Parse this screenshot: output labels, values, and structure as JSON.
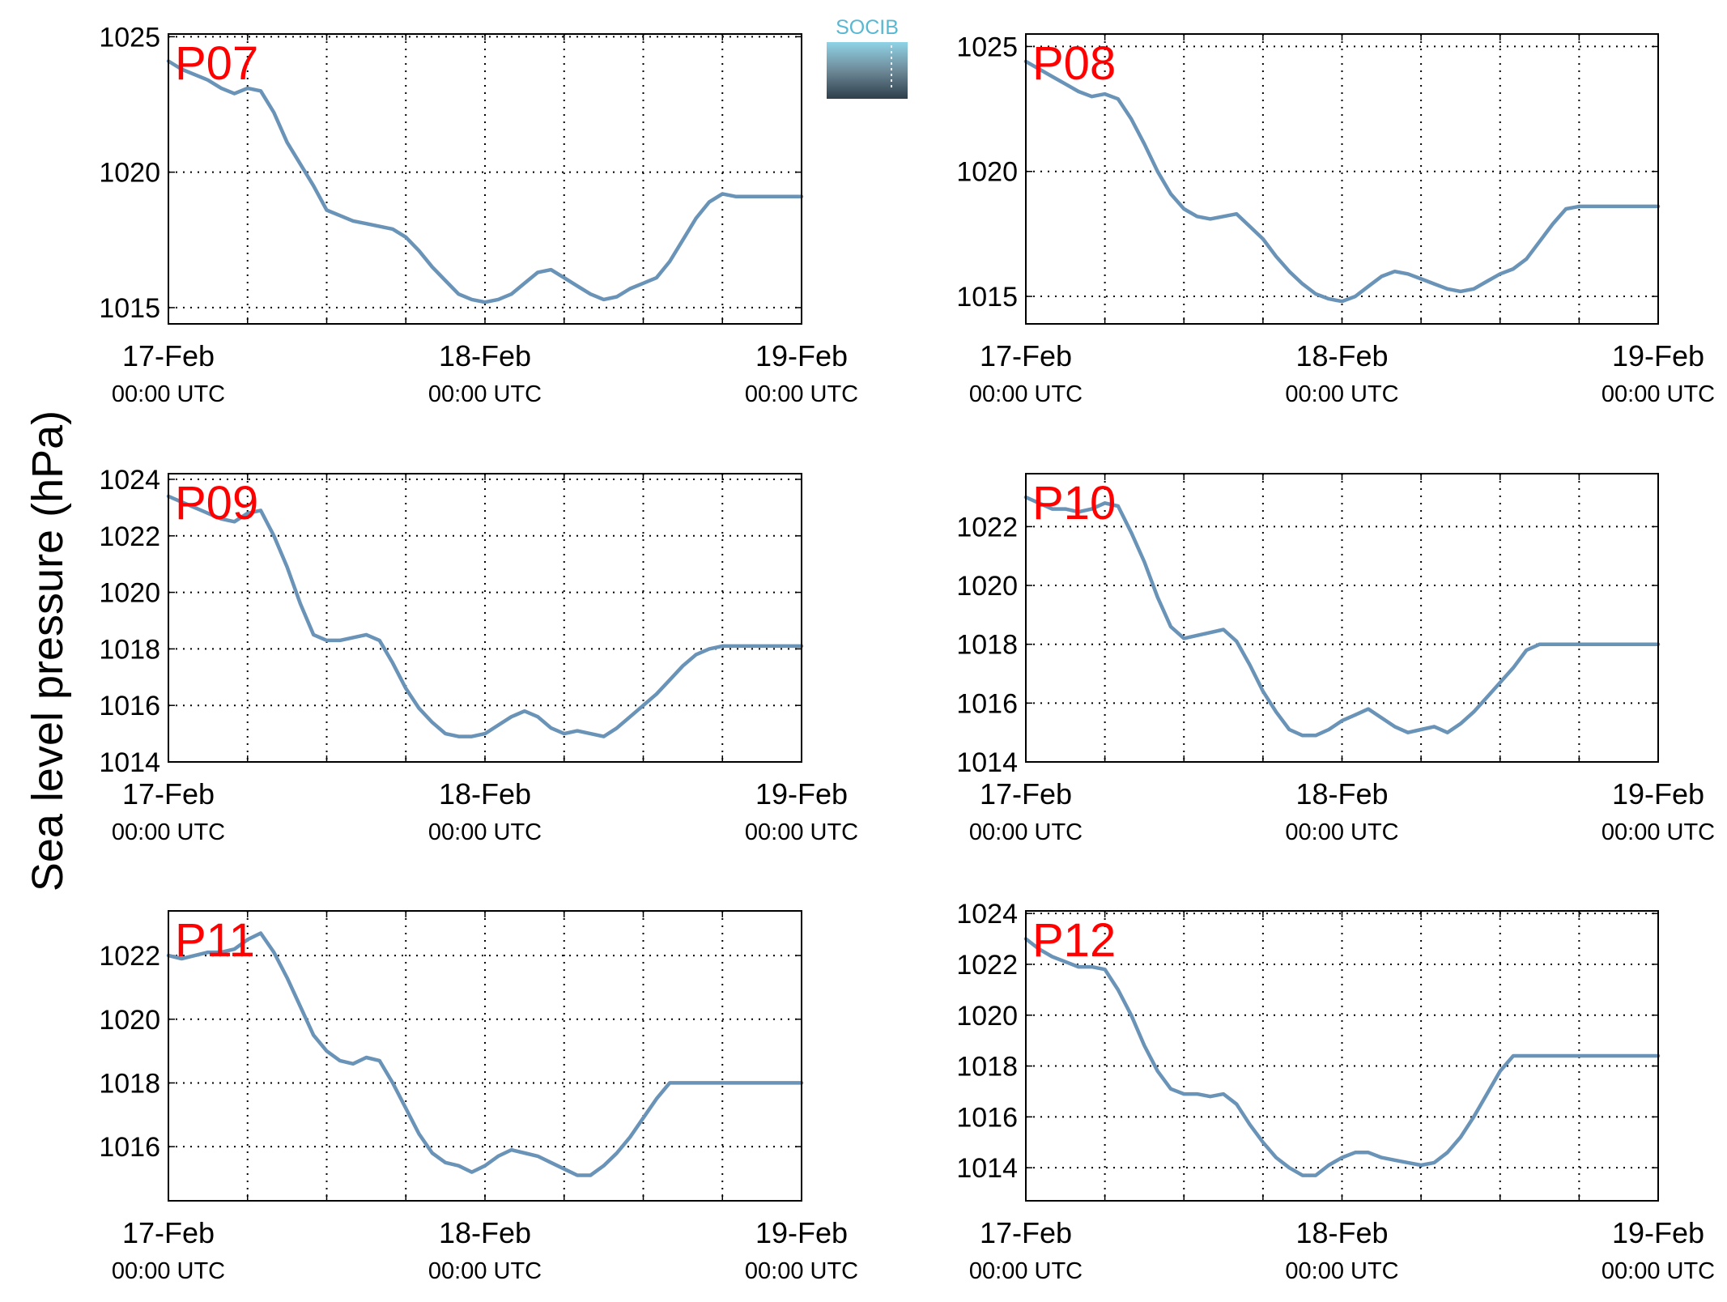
{
  "figure": {
    "ylabel": "Sea level pressure (hPa)",
    "logo_text": "SOCIB",
    "x_tick_labels": [
      {
        "date": "17-Feb",
        "time": "00:00 UTC"
      },
      {
        "date": "18-Feb",
        "time": "00:00 UTC"
      },
      {
        "date": "19-Feb",
        "time": "00:00 UTC"
      }
    ],
    "line_color": "#6a93b8",
    "station_label_color": "#ff0000"
  },
  "chart_data": [
    {
      "type": "line",
      "station": "P07",
      "grid": true,
      "xlabel": "",
      "ylabel": "Sea level pressure (hPa)",
      "xlim_hours": [
        0,
        48
      ],
      "ylim": [
        1014.4,
        1025.1
      ],
      "yticks": [
        1015,
        1020,
        1025
      ],
      "x_hours": [
        0,
        1,
        2,
        3,
        4,
        5,
        6,
        7,
        8,
        9,
        10,
        11,
        12,
        13,
        14,
        15,
        16,
        17,
        18,
        19,
        20,
        21,
        22,
        23,
        24,
        25,
        26,
        27,
        28,
        29,
        30,
        31,
        32,
        33,
        34,
        35,
        36,
        37,
        38,
        39,
        40,
        41,
        42,
        43,
        44,
        45,
        46,
        47,
        48
      ],
      "y": [
        1024.1,
        1023.8,
        1023.6,
        1023.4,
        1023.1,
        1022.9,
        1023.1,
        1023.0,
        1022.2,
        1021.1,
        1020.3,
        1019.5,
        1018.6,
        1018.4,
        1018.2,
        1018.1,
        1018.0,
        1017.9,
        1017.6,
        1017.1,
        1016.5,
        1016.0,
        1015.5,
        1015.3,
        1015.2,
        1015.3,
        1015.5,
        1015.9,
        1016.3,
        1016.4,
        1016.1,
        1015.8,
        1015.5,
        1015.3,
        1015.4,
        1015.7,
        1015.9,
        1016.1,
        1016.7,
        1017.5,
        1018.3,
        1018.9,
        1019.2,
        1019.1,
        1019.1,
        1019.1,
        1019.1,
        1019.1,
        1019.1
      ],
      "series": [
        {
          "name": "",
          "values": []
        }
      ]
    },
    {
      "type": "line",
      "station": "P08",
      "grid": true,
      "xlabel": "",
      "ylabel": "Sea level pressure (hPa)",
      "xlim_hours": [
        0,
        48
      ],
      "ylim": [
        1013.9,
        1025.5
      ],
      "yticks": [
        1015,
        1020,
        1025
      ],
      "x_hours": [
        0,
        1,
        2,
        3,
        4,
        5,
        6,
        7,
        8,
        9,
        10,
        11,
        12,
        13,
        14,
        15,
        16,
        17,
        18,
        19,
        20,
        21,
        22,
        23,
        24,
        25,
        26,
        27,
        28,
        29,
        30,
        31,
        32,
        33,
        34,
        35,
        36,
        37,
        38,
        39,
        40,
        41,
        42,
        43,
        44,
        45,
        46,
        47,
        48
      ],
      "y": [
        1024.4,
        1024.1,
        1023.8,
        1023.5,
        1023.2,
        1023.0,
        1023.1,
        1022.9,
        1022.1,
        1021.1,
        1020.0,
        1019.1,
        1018.5,
        1018.2,
        1018.1,
        1018.2,
        1018.3,
        1017.8,
        1017.3,
        1016.6,
        1016.0,
        1015.5,
        1015.1,
        1014.9,
        1014.8,
        1015.0,
        1015.4,
        1015.8,
        1016.0,
        1015.9,
        1015.7,
        1015.5,
        1015.3,
        1015.2,
        1015.3,
        1015.6,
        1015.9,
        1016.1,
        1016.5,
        1017.2,
        1017.9,
        1018.5,
        1018.6,
        1018.6,
        1018.6,
        1018.6,
        1018.6,
        1018.6,
        1018.6
      ],
      "series": [
        {
          "name": "",
          "values": []
        }
      ]
    },
    {
      "type": "line",
      "station": "P09",
      "grid": true,
      "xlabel": "",
      "ylabel": "Sea level pressure (hPa)",
      "xlim_hours": [
        0,
        48
      ],
      "ylim": [
        1014,
        1024.2
      ],
      "yticks": [
        1014,
        1016,
        1018,
        1020,
        1022,
        1024
      ],
      "x_hours": [
        0,
        1,
        2,
        3,
        4,
        5,
        6,
        7,
        8,
        9,
        10,
        11,
        12,
        13,
        14,
        15,
        16,
        17,
        18,
        19,
        20,
        21,
        22,
        23,
        24,
        25,
        26,
        27,
        28,
        29,
        30,
        31,
        32,
        33,
        34,
        35,
        36,
        37,
        38,
        39,
        40,
        41,
        42,
        43,
        44,
        45,
        46,
        47,
        48
      ],
      "y": [
        1023.4,
        1023.2,
        1023.0,
        1022.8,
        1022.6,
        1022.5,
        1022.8,
        1022.9,
        1022.0,
        1020.9,
        1019.6,
        1018.5,
        1018.3,
        1018.3,
        1018.4,
        1018.5,
        1018.3,
        1017.5,
        1016.6,
        1015.9,
        1015.4,
        1015.0,
        1014.9,
        1014.9,
        1015.0,
        1015.3,
        1015.6,
        1015.8,
        1015.6,
        1015.2,
        1015.0,
        1015.1,
        1015.0,
        1014.9,
        1015.2,
        1015.6,
        1016.0,
        1016.4,
        1016.9,
        1017.4,
        1017.8,
        1018.0,
        1018.1,
        1018.1,
        1018.1,
        1018.1,
        1018.1,
        1018.1,
        1018.1
      ],
      "series": [
        {
          "name": "",
          "values": []
        }
      ]
    },
    {
      "type": "line",
      "station": "P10",
      "grid": true,
      "xlabel": "",
      "ylabel": "Sea level pressure (hPa)",
      "xlim_hours": [
        0,
        48
      ],
      "ylim": [
        1014,
        1023.8
      ],
      "yticks": [
        1014,
        1016,
        1018,
        1020,
        1022
      ],
      "x_hours": [
        0,
        1,
        2,
        3,
        4,
        5,
        6,
        7,
        8,
        9,
        10,
        11,
        12,
        13,
        14,
        15,
        16,
        17,
        18,
        19,
        20,
        21,
        22,
        23,
        24,
        25,
        26,
        27,
        28,
        29,
        30,
        31,
        32,
        33,
        34,
        35,
        36,
        37,
        38,
        39,
        40,
        41,
        42,
        43,
        44,
        45,
        46,
        47,
        48
      ],
      "y": [
        1023.0,
        1022.8,
        1022.6,
        1022.6,
        1022.5,
        1022.6,
        1022.8,
        1022.7,
        1021.8,
        1020.8,
        1019.6,
        1018.6,
        1018.2,
        1018.3,
        1018.4,
        1018.5,
        1018.1,
        1017.3,
        1016.4,
        1015.7,
        1015.1,
        1014.9,
        1014.9,
        1015.1,
        1015.4,
        1015.6,
        1015.8,
        1015.5,
        1015.2,
        1015.0,
        1015.1,
        1015.2,
        1015.0,
        1015.3,
        1015.7,
        1016.2,
        1016.7,
        1017.2,
        1017.8,
        1018.0,
        1018.0,
        1018.0,
        1018.0,
        1018.0,
        1018.0,
        1018.0,
        1018.0,
        1018.0,
        1018.0
      ],
      "series": [
        {
          "name": "",
          "values": []
        }
      ]
    },
    {
      "type": "line",
      "station": "P11",
      "grid": true,
      "xlabel": "",
      "ylabel": "Sea level pressure (hPa)",
      "xlim_hours": [
        0,
        48
      ],
      "ylim": [
        1014.3,
        1023.4
      ],
      "yticks": [
        1016,
        1018,
        1020,
        1022
      ],
      "x_hours": [
        0,
        1,
        2,
        3,
        4,
        5,
        6,
        7,
        8,
        9,
        10,
        11,
        12,
        13,
        14,
        15,
        16,
        17,
        18,
        19,
        20,
        21,
        22,
        23,
        24,
        25,
        26,
        27,
        28,
        29,
        30,
        31,
        32,
        33,
        34,
        35,
        36,
        37,
        38,
        39,
        40,
        41,
        42,
        43,
        44,
        45,
        46,
        47,
        48
      ],
      "y": [
        1022.0,
        1021.9,
        1022.0,
        1022.1,
        1022.1,
        1022.2,
        1022.5,
        1022.7,
        1022.1,
        1021.3,
        1020.4,
        1019.5,
        1019.0,
        1018.7,
        1018.6,
        1018.8,
        1018.7,
        1018.0,
        1017.2,
        1016.4,
        1015.8,
        1015.5,
        1015.4,
        1015.2,
        1015.4,
        1015.7,
        1015.9,
        1015.8,
        1015.7,
        1015.5,
        1015.3,
        1015.1,
        1015.1,
        1015.4,
        1015.8,
        1016.3,
        1016.9,
        1017.5,
        1018.0,
        1018.0,
        1018.0,
        1018.0,
        1018.0,
        1018.0,
        1018.0,
        1018.0,
        1018.0,
        1018.0,
        1018.0
      ],
      "series": [
        {
          "name": "",
          "values": []
        }
      ]
    },
    {
      "type": "line",
      "station": "P12",
      "grid": true,
      "xlabel": "",
      "ylabel": "Sea level pressure (hPa)",
      "xlim_hours": [
        0,
        48
      ],
      "ylim": [
        1012.7,
        1024.1
      ],
      "yticks": [
        1014,
        1016,
        1018,
        1020,
        1022,
        1024
      ],
      "x_hours": [
        0,
        1,
        2,
        3,
        4,
        5,
        6,
        7,
        8,
        9,
        10,
        11,
        12,
        13,
        14,
        15,
        16,
        17,
        18,
        19,
        20,
        21,
        22,
        23,
        24,
        25,
        26,
        27,
        28,
        29,
        30,
        31,
        32,
        33,
        34,
        35,
        36,
        37,
        38,
        39,
        40,
        41,
        42,
        43,
        44,
        45,
        46,
        47,
        48
      ],
      "y": [
        1023.0,
        1022.6,
        1022.3,
        1022.1,
        1021.9,
        1021.9,
        1021.8,
        1021.0,
        1020.0,
        1018.8,
        1017.8,
        1017.1,
        1016.9,
        1016.9,
        1016.8,
        1016.9,
        1016.5,
        1015.7,
        1015.0,
        1014.4,
        1014.0,
        1013.7,
        1013.7,
        1014.1,
        1014.4,
        1014.6,
        1014.6,
        1014.4,
        1014.3,
        1014.2,
        1014.1,
        1014.2,
        1014.6,
        1015.2,
        1016.0,
        1016.9,
        1017.8,
        1018.4,
        1018.4,
        1018.4,
        1018.4,
        1018.4,
        1018.4,
        1018.4,
        1018.4,
        1018.4,
        1018.4,
        1018.4,
        1018.4
      ],
      "series": [
        {
          "name": "",
          "values": []
        }
      ]
    }
  ]
}
